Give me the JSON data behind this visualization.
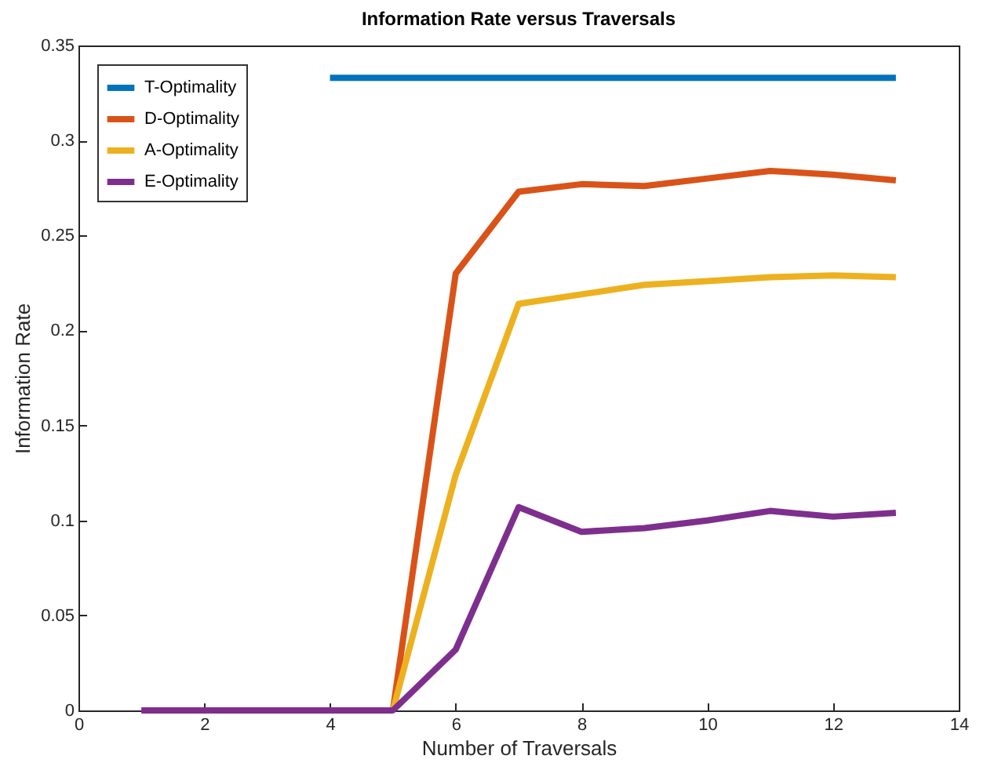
{
  "chart_data": {
    "type": "line",
    "title": "Information Rate versus Traversals",
    "xlabel": "Number of Traversals",
    "ylabel": "Information Rate",
    "x": [
      1,
      2,
      3,
      4,
      5,
      6,
      7,
      8,
      9,
      10,
      11,
      12,
      13
    ],
    "series": [
      {
        "name": "T-Optimality",
        "color": "#0072bd",
        "values": [
          null,
          null,
          null,
          0.333,
          0.333,
          0.333,
          0.333,
          0.333,
          0.333,
          0.333,
          0.333,
          0.333,
          0.333
        ]
      },
      {
        "name": "D-Optimality",
        "color": "#d95319",
        "values": [
          null,
          null,
          null,
          null,
          0,
          0.23,
          0.273,
          0.277,
          0.276,
          0.28,
          0.284,
          0.282,
          0.279
        ]
      },
      {
        "name": "A-Optimality",
        "color": "#edb120",
        "values": [
          null,
          null,
          null,
          null,
          0,
          0.124,
          0.214,
          0.219,
          0.224,
          0.226,
          0.228,
          0.229,
          0.228
        ]
      },
      {
        "name": "E-Optimality",
        "color": "#7e2f8e",
        "values": [
          0,
          0,
          0,
          0,
          0,
          0.032,
          0.107,
          0.094,
          0.096,
          0.1,
          0.105,
          0.102,
          0.104
        ]
      }
    ],
    "xlim": [
      0,
      14
    ],
    "xticks": [
      0,
      2,
      4,
      6,
      8,
      10,
      12,
      14
    ],
    "ylim": [
      0,
      0.35
    ],
    "yticks": [
      0,
      0.05,
      0.1,
      0.15,
      0.2,
      0.25,
      0.3,
      0.35
    ],
    "grid": false,
    "legend": "top left",
    "line_style": "solid",
    "marker": "none"
  }
}
